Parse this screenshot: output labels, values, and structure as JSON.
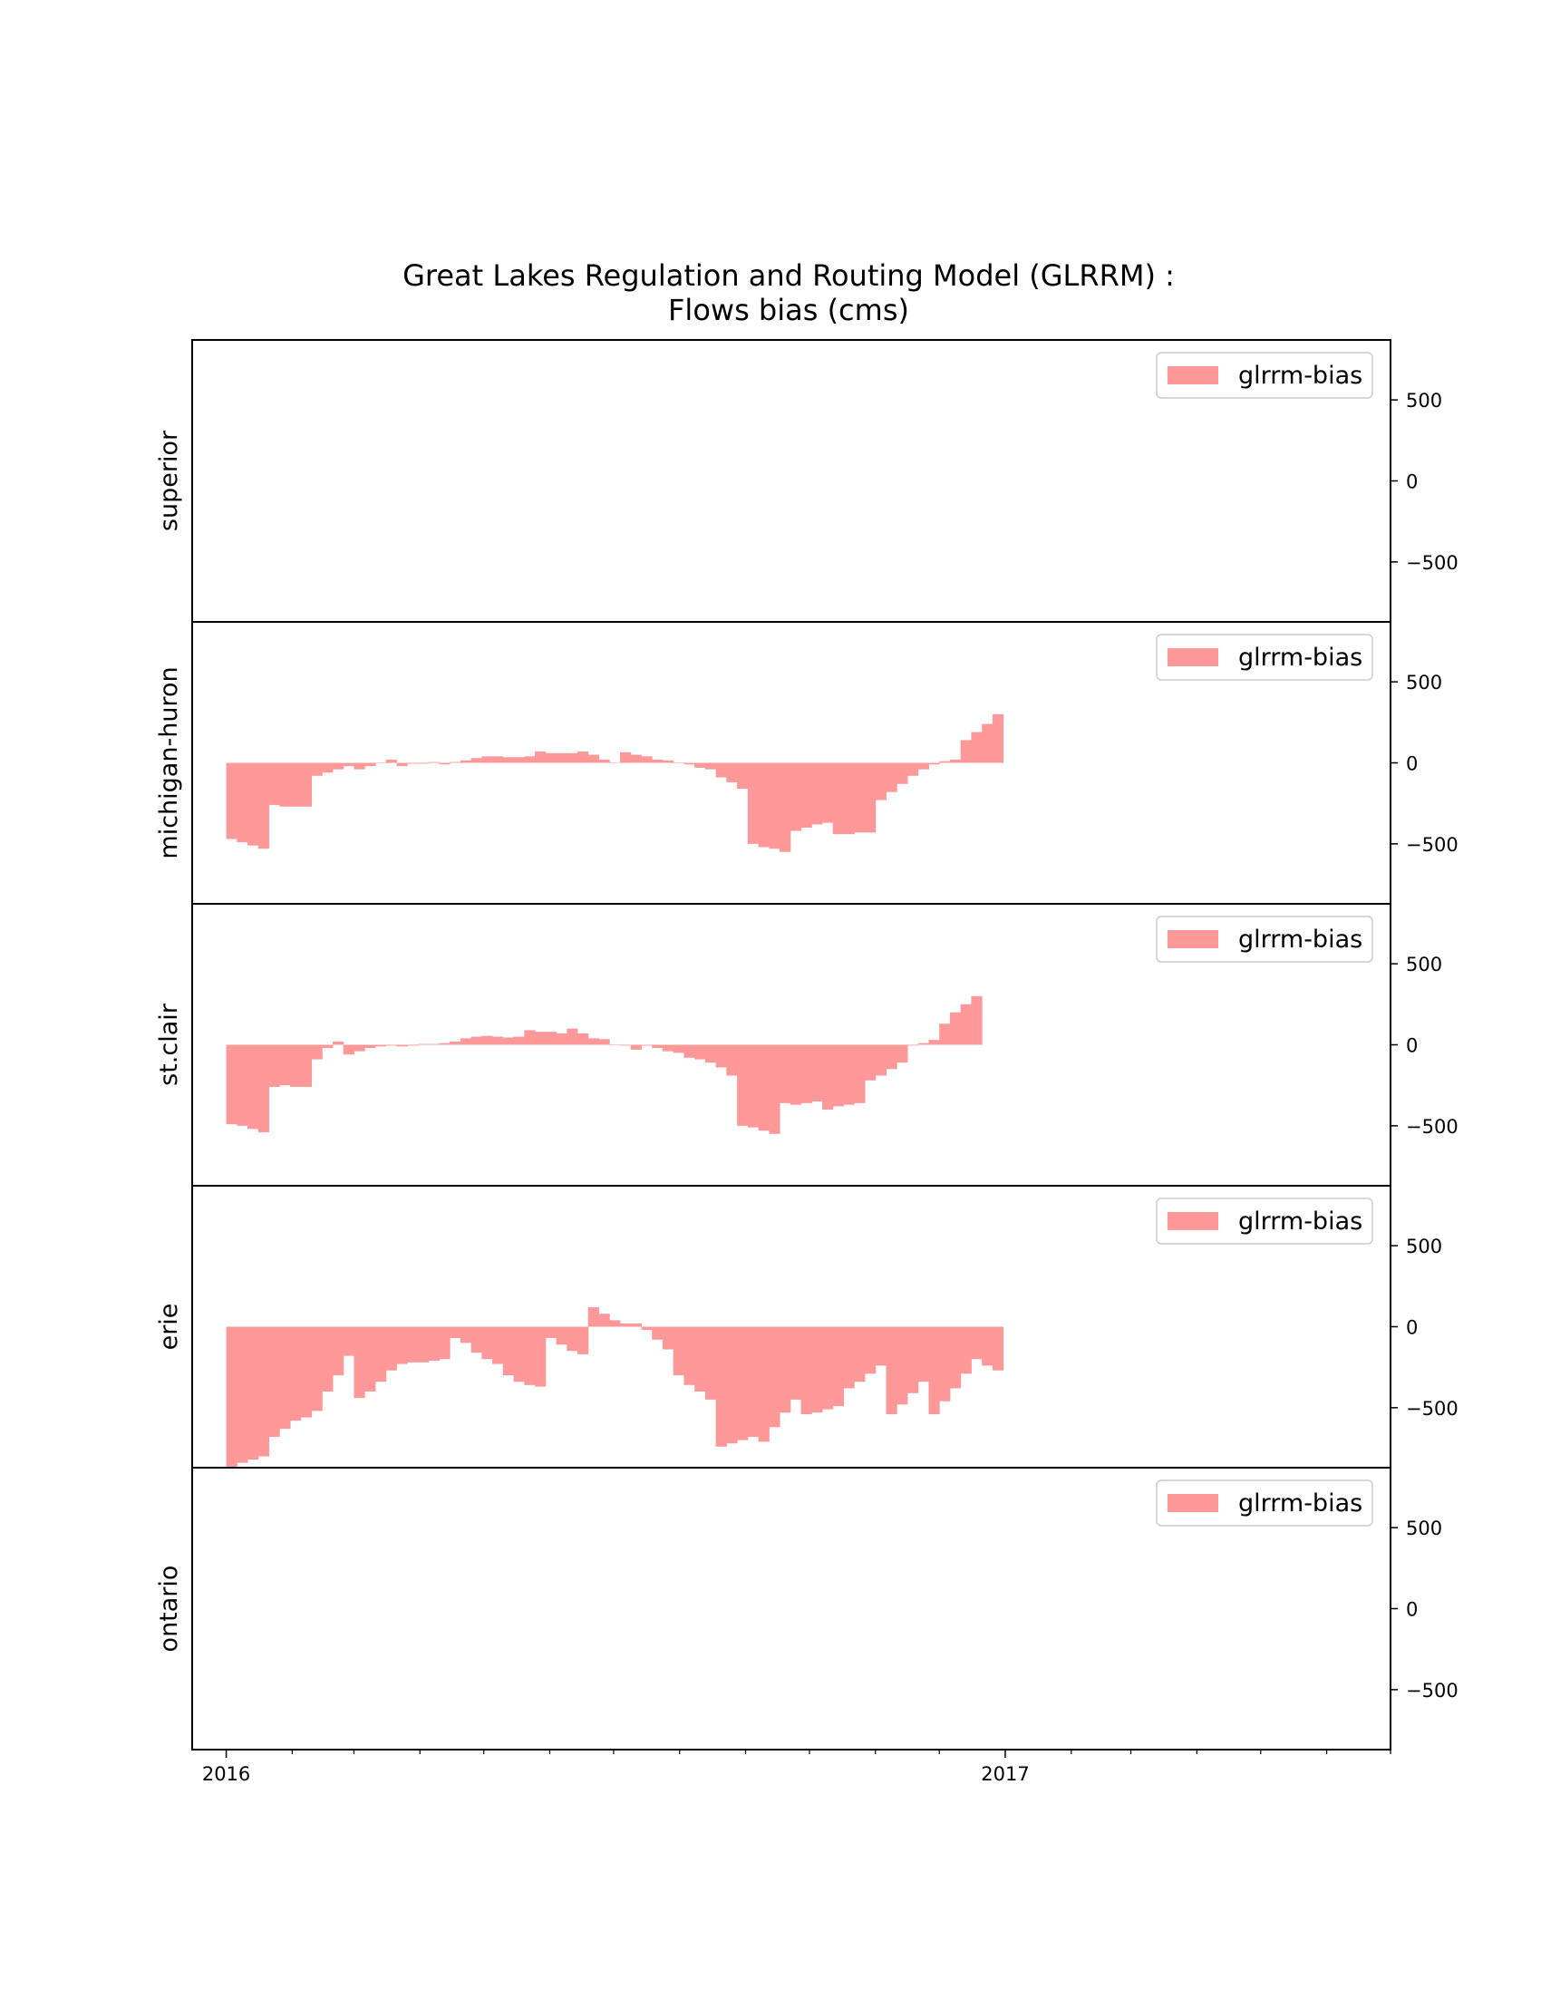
{
  "chart_data": {
    "type": "bar",
    "title": "Great Lakes Regulation and Routing Model (GLRRM) :",
    "subtitle": "Flows bias (cms)",
    "bar_color": "#ff9999",
    "x_tick_labels": [
      "2016",
      "2017"
    ],
    "x_ticks": [
      "2016-01-01",
      "2017-01-01"
    ],
    "x_range": [
      "2015-12-16",
      "2017-07-01"
    ],
    "ylim": [
      -870,
      870
    ],
    "y_ticks": [
      500,
      0,
      -500
    ],
    "y_tick_labels": [
      "500",
      "0",
      "−500"
    ],
    "y_axis_position": "right",
    "legend_placement": "upper right",
    "bar_start": "2016-01-01",
    "bar_step": "5 days",
    "panels": [
      {
        "name": "superior",
        "series": [
          {
            "name": "glrrm-bias",
            "values": []
          }
        ]
      },
      {
        "name": "michigan-huron",
        "series": [
          {
            "name": "glrrm-bias",
            "values": [
              -470,
              -490,
              -510,
              -530,
              -260,
              -270,
              -270,
              -270,
              -80,
              -60,
              -40,
              -20,
              -40,
              -20,
              0,
              20,
              -20,
              -5,
              -5,
              5,
              -10,
              5,
              15,
              30,
              40,
              40,
              35,
              35,
              40,
              70,
              60,
              60,
              60,
              70,
              50,
              20,
              0,
              65,
              50,
              40,
              20,
              15,
              0,
              -10,
              -30,
              -40,
              -90,
              -120,
              -160,
              -500,
              -520,
              -530,
              -550,
              -420,
              -400,
              -380,
              -370,
              -440,
              -440,
              -430,
              -430,
              -230,
              -180,
              -130,
              -80,
              -40,
              -10,
              10,
              20,
              140,
              190,
              240,
              300
            ]
          }
        ]
      },
      {
        "name": "st.clair",
        "series": [
          {
            "name": "glrrm-bias",
            "values": [
              -490,
              -500,
              -520,
              -540,
              -260,
              -250,
              -260,
              -260,
              -90,
              -20,
              20,
              -60,
              -40,
              -20,
              -10,
              -5,
              -10,
              -5,
              5,
              5,
              10,
              20,
              40,
              50,
              55,
              50,
              45,
              50,
              90,
              80,
              80,
              70,
              100,
              70,
              40,
              35,
              0,
              -5,
              -30,
              -5,
              -20,
              -40,
              -50,
              -80,
              -90,
              -110,
              -140,
              -190,
              -500,
              -510,
              -530,
              -550,
              -360,
              -370,
              -360,
              -350,
              -400,
              -380,
              -370,
              -360,
              -220,
              -190,
              -150,
              -110,
              -5,
              10,
              30,
              130,
              200,
              250,
              300
            ]
          }
        ]
      },
      {
        "name": "erie",
        "series": [
          {
            "name": "glrrm-bias",
            "values": [
              -870,
              -840,
              -820,
              -800,
              -680,
              -630,
              -580,
              -560,
              -520,
              -400,
              -300,
              -180,
              -440,
              -400,
              -340,
              -270,
              -230,
              -220,
              -220,
              -210,
              -200,
              -70,
              -100,
              -160,
              -200,
              -230,
              -300,
              -340,
              -360,
              -370,
              -70,
              -110,
              -150,
              -170,
              120,
              80,
              40,
              20,
              20,
              -20,
              -80,
              -140,
              -300,
              -360,
              -400,
              -450,
              -740,
              -720,
              -700,
              -680,
              -710,
              -620,
              -530,
              -450,
              -540,
              -530,
              -510,
              -490,
              -380,
              -340,
              -290,
              -240,
              -540,
              -480,
              -410,
              -340,
              -540,
              -460,
              -380,
              -290,
              -200,
              -240,
              -270
            ]
          }
        ]
      },
      {
        "name": "ontario",
        "series": [
          {
            "name": "glrrm-bias",
            "values": []
          }
        ]
      }
    ]
  }
}
